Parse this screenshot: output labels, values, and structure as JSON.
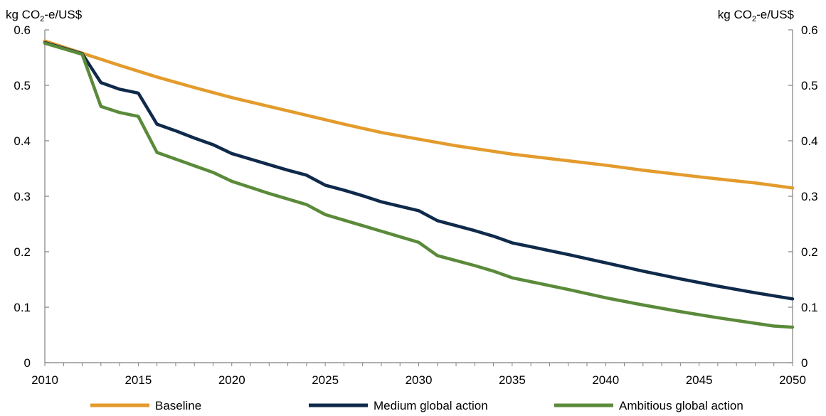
{
  "chart_data": {
    "type": "line",
    "title": "",
    "ylabel_left": "kg CO2-e/US$",
    "ylabel_right": "kg CO2-e/US$",
    "ylabel_parts": {
      "pre": "kg CO",
      "sub": "2",
      "post": "-e/US$"
    },
    "xlim": [
      2010,
      2050
    ],
    "ylim": [
      0,
      0.6
    ],
    "x_ticks": [
      2010,
      2015,
      2020,
      2025,
      2030,
      2035,
      2040,
      2045,
      2050
    ],
    "y_ticks": [
      0,
      0.1,
      0.2,
      0.3,
      0.4,
      0.5,
      0.6
    ],
    "y_tick_labels": [
      "0",
      "0.1",
      "0.2",
      "0.3",
      "0.4",
      "0.5",
      "0.6"
    ],
    "grid": false,
    "legend_position": "bottom",
    "series": [
      {
        "name": "Baseline",
        "color": "#E39B2C",
        "points": [
          [
            2010,
            0.58
          ],
          [
            2012,
            0.558
          ],
          [
            2014,
            0.536
          ],
          [
            2016,
            0.515
          ],
          [
            2018,
            0.496
          ],
          [
            2020,
            0.478
          ],
          [
            2022,
            0.462
          ],
          [
            2024,
            0.446
          ],
          [
            2026,
            0.43
          ],
          [
            2028,
            0.415
          ],
          [
            2030,
            0.403
          ],
          [
            2032,
            0.391
          ],
          [
            2034,
            0.381
          ],
          [
            2035,
            0.376
          ],
          [
            2037,
            0.368
          ],
          [
            2040,
            0.356
          ],
          [
            2042,
            0.347
          ],
          [
            2045,
            0.335
          ],
          [
            2048,
            0.324
          ],
          [
            2050,
            0.315
          ]
        ]
      },
      {
        "name": "Medium global action",
        "color": "#0F2A4A",
        "points": [
          [
            2010,
            0.577
          ],
          [
            2012,
            0.557
          ],
          [
            2013,
            0.505
          ],
          [
            2014,
            0.493
          ],
          [
            2015,
            0.486
          ],
          [
            2016,
            0.43
          ],
          [
            2017,
            0.418
          ],
          [
            2018,
            0.405
          ],
          [
            2019,
            0.393
          ],
          [
            2020,
            0.377
          ],
          [
            2021,
            0.367
          ],
          [
            2022,
            0.357
          ],
          [
            2023,
            0.347
          ],
          [
            2024,
            0.338
          ],
          [
            2025,
            0.32
          ],
          [
            2026,
            0.311
          ],
          [
            2027,
            0.301
          ],
          [
            2028,
            0.29
          ],
          [
            2029,
            0.282
          ],
          [
            2030,
            0.274
          ],
          [
            2031,
            0.256
          ],
          [
            2032,
            0.247
          ],
          [
            2033,
            0.238
          ],
          [
            2034,
            0.228
          ],
          [
            2035,
            0.216
          ],
          [
            2036,
            0.209
          ],
          [
            2038,
            0.195
          ],
          [
            2040,
            0.18
          ],
          [
            2042,
            0.165
          ],
          [
            2044,
            0.151
          ],
          [
            2046,
            0.138
          ],
          [
            2048,
            0.126
          ],
          [
            2050,
            0.115
          ]
        ]
      },
      {
        "name": "Ambitious global action",
        "color": "#5A8A3A",
        "points": [
          [
            2010,
            0.576
          ],
          [
            2012,
            0.556
          ],
          [
            2013,
            0.462
          ],
          [
            2014,
            0.451
          ],
          [
            2015,
            0.444
          ],
          [
            2016,
            0.379
          ],
          [
            2017,
            0.367
          ],
          [
            2018,
            0.355
          ],
          [
            2019,
            0.343
          ],
          [
            2020,
            0.327
          ],
          [
            2021,
            0.316
          ],
          [
            2022,
            0.305
          ],
          [
            2023,
            0.295
          ],
          [
            2024,
            0.285
          ],
          [
            2025,
            0.267
          ],
          [
            2026,
            0.257
          ],
          [
            2027,
            0.247
          ],
          [
            2028,
            0.237
          ],
          [
            2029,
            0.227
          ],
          [
            2030,
            0.217
          ],
          [
            2031,
            0.193
          ],
          [
            2032,
            0.184
          ],
          [
            2033,
            0.175
          ],
          [
            2034,
            0.165
          ],
          [
            2035,
            0.153
          ],
          [
            2036,
            0.146
          ],
          [
            2038,
            0.132
          ],
          [
            2040,
            0.117
          ],
          [
            2042,
            0.104
          ],
          [
            2044,
            0.092
          ],
          [
            2046,
            0.081
          ],
          [
            2048,
            0.071
          ],
          [
            2049,
            0.066
          ],
          [
            2050,
            0.064
          ]
        ]
      }
    ]
  }
}
